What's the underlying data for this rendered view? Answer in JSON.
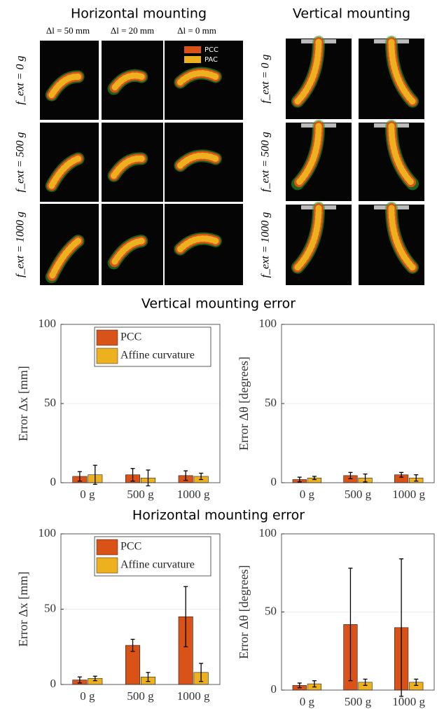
{
  "figure": {
    "horizontal_title": "Horizontal mounting",
    "vertical_title": "Vertical mounting",
    "column_labels": [
      "Δl = 50 mm",
      "Δl = 20 mm",
      "Δl = 0 mm"
    ],
    "row_labels": [
      "f_ext = 0 g",
      "f_ext = 500 g",
      "f_ext = 1000 g"
    ],
    "photo_legend": [
      "PCC",
      "PAC"
    ],
    "vertical_error_title": "Vertical mounting error",
    "horizontal_error_title": "Horizontal mounting error"
  },
  "chart_data": [
    {
      "type": "bar",
      "ylabel": "Error Δx [mm]",
      "categories": [
        "0 g",
        "500 g",
        "1000 g"
      ],
      "series": [
        {
          "name": "PCC",
          "color": "#d95319",
          "values": [
            4,
            5,
            4.5
          ],
          "errors": [
            3,
            4,
            3
          ]
        },
        {
          "name": "Affine curvature",
          "color": "#edb120",
          "values": [
            5,
            3,
            4
          ],
          "errors": [
            6,
            5,
            2
          ]
        }
      ],
      "ylim": [
        0,
        100
      ],
      "yticks": [
        0,
        50,
        100
      ],
      "grid": true,
      "legend": "upper center"
    },
    {
      "type": "bar",
      "ylabel": "Error Δθ [degrees]",
      "categories": [
        "0 g",
        "500 g",
        "1000 g"
      ],
      "series": [
        {
          "name": "PCC",
          "color": "#d95319",
          "values": [
            2,
            4.5,
            5
          ],
          "errors": [
            1.5,
            2,
            1.5
          ]
        },
        {
          "name": "Affine curvature",
          "color": "#edb120",
          "values": [
            3,
            3,
            3
          ],
          "errors": [
            1,
            2.5,
            2
          ]
        }
      ],
      "ylim": [
        0,
        100
      ],
      "yticks": [
        0,
        50,
        100
      ],
      "grid": true
    },
    {
      "type": "bar",
      "ylabel": "Error Δx [mm]",
      "categories": [
        "0 g",
        "500 g",
        "1000 g"
      ],
      "series": [
        {
          "name": "PCC",
          "color": "#d95319",
          "values": [
            3,
            26,
            45
          ],
          "errors": [
            2,
            4,
            20
          ]
        },
        {
          "name": "Affine curvature",
          "color": "#edb120",
          "values": [
            4,
            5,
            8
          ],
          "errors": [
            1.5,
            3,
            6
          ]
        }
      ],
      "ylim": [
        0,
        100
      ],
      "yticks": [
        0,
        50,
        100
      ],
      "grid": true,
      "legend": "upper center"
    },
    {
      "type": "bar",
      "ylabel": "Error Δθ [degrees]",
      "categories": [
        "0 g",
        "500 g",
        "1000 g"
      ],
      "series": [
        {
          "name": "PCC",
          "color": "#d95319",
          "values": [
            3,
            42,
            40
          ],
          "errors": [
            1.5,
            36,
            44
          ]
        },
        {
          "name": "Affine curvature",
          "color": "#edb120",
          "values": [
            4,
            5,
            5
          ],
          "errors": [
            2,
            2,
            2
          ]
        }
      ],
      "ylim": [
        0,
        100
      ],
      "yticks": [
        0,
        50,
        100
      ],
      "grid": true
    }
  ]
}
